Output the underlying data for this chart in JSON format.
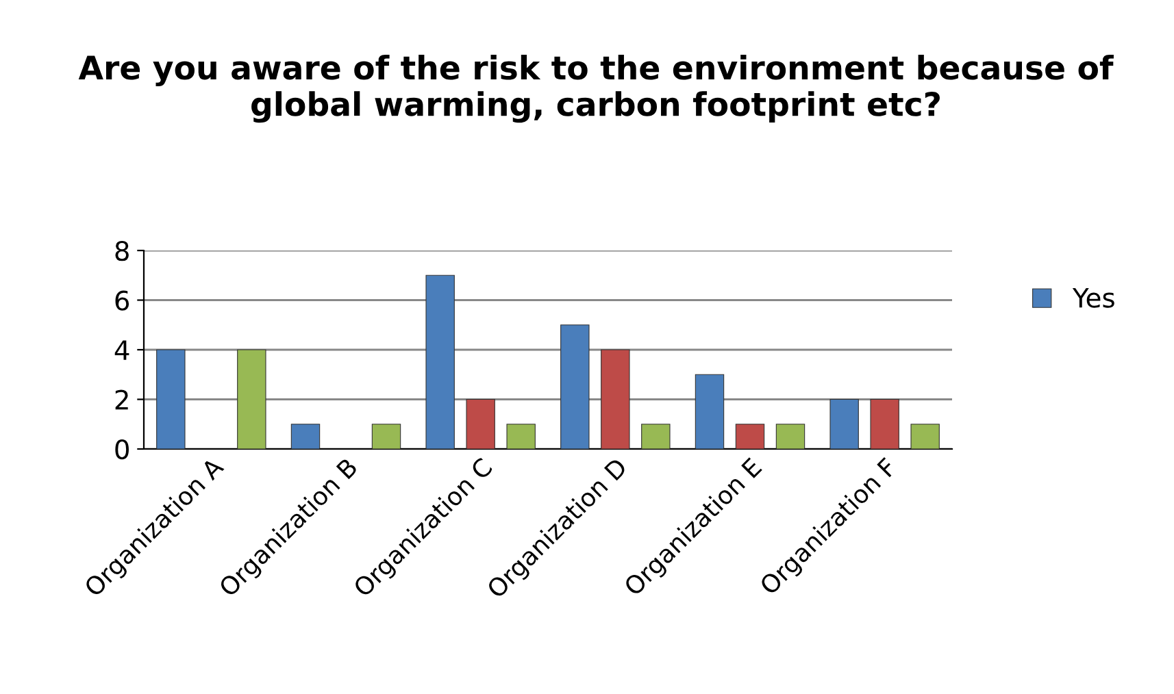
{
  "chart_data": {
    "type": "bar",
    "title": "Are you aware of the risk to the environment because of global warming, carbon footprint etc?",
    "categories": [
      "Organization A",
      "Organization B",
      "Organization C",
      "Organization D",
      "Organization E",
      "Organization F"
    ],
    "series": [
      {
        "name": "Yes",
        "color": "#4a7ebb",
        "values": [
          4,
          1,
          7,
          5,
          3,
          2
        ]
      },
      {
        "color": "#be4b48",
        "values": [
          null,
          null,
          2,
          4,
          1,
          2
        ]
      },
      {
        "color": "#98b954",
        "values": [
          4,
          1,
          1,
          1,
          1,
          1
        ]
      }
    ],
    "ylim": [
      0,
      8
    ],
    "yticks": [
      0,
      2,
      4,
      6,
      8
    ],
    "grid": "y",
    "legend": "right"
  }
}
